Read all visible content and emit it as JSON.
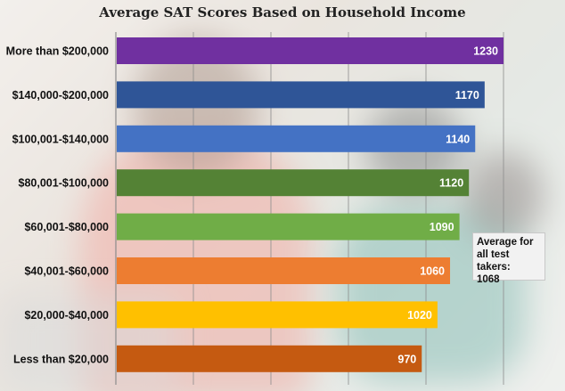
{
  "chart_data": {
    "type": "bar",
    "orientation": "horizontal",
    "title": "Average SAT Scores Based on Household Income",
    "categories": [
      "More than $200,000",
      "$140,000-$200,000",
      "$100,001-$140,000",
      "$80,001-$100,000",
      "$60,001-$80,000",
      "$40,001-$60,000",
      "$20,000-$40,000",
      "Less than $20,000"
    ],
    "values": [
      1230,
      1170,
      1140,
      1120,
      1090,
      1060,
      1020,
      970
    ],
    "bar_colors": [
      "#7030a0",
      "#2f5597",
      "#4472c4",
      "#548235",
      "#70ad47",
      "#ed7d31",
      "#ffc000",
      "#c55a11"
    ],
    "grid": "vertical, major ticks",
    "legend": "none",
    "annotation": "Average for\nall test takers:\n1068"
  },
  "colors": {
    "title": "#222222",
    "label": "#111111",
    "value_label": "#ffffff",
    "gridline": "#8c8c8c"
  }
}
